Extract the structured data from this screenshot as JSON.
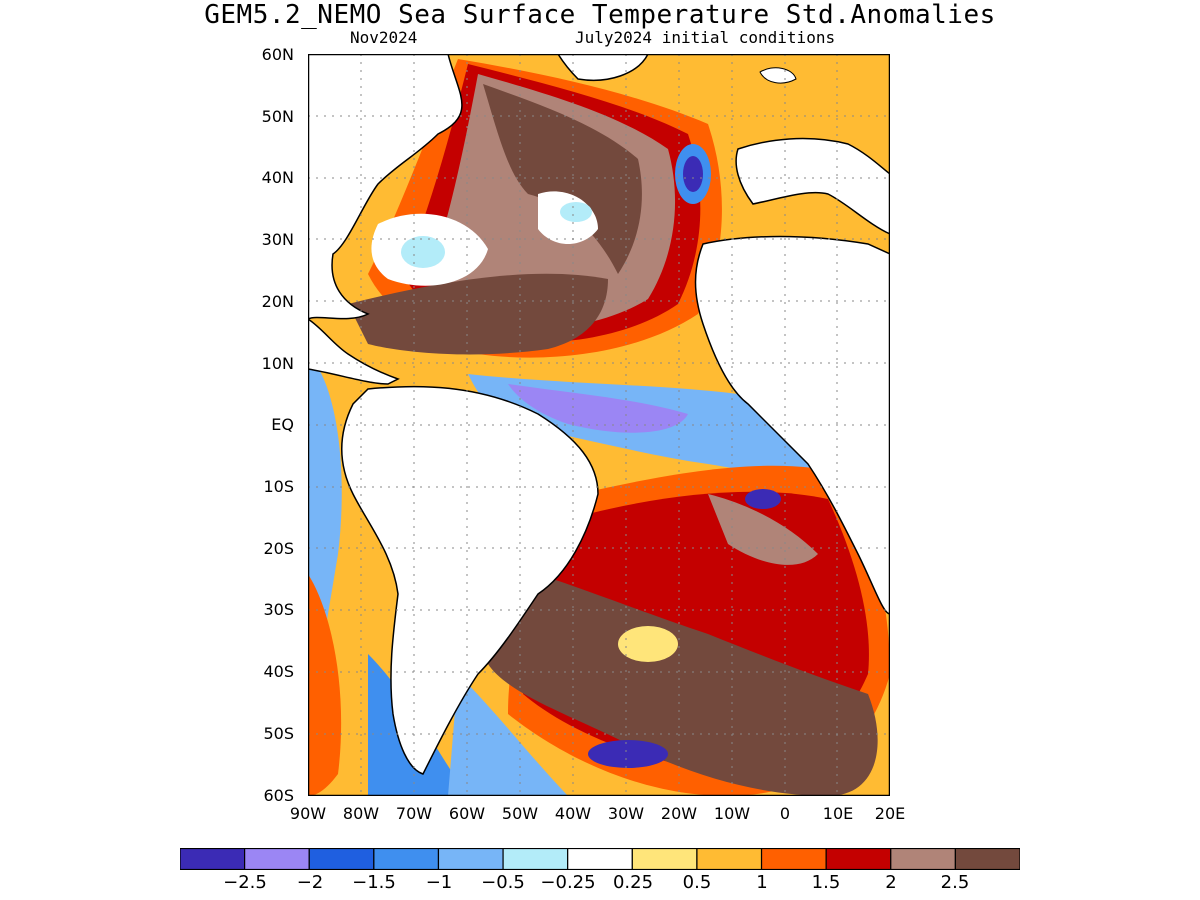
{
  "title": "GEM5.2_NEMO Sea Surface Temperature Std.Anomalies",
  "subtitle_left": "Nov2024",
  "subtitle_right": "July2024 initial conditions",
  "lat_labels": [
    "60N",
    "50N",
    "40N",
    "30N",
    "20N",
    "10N",
    "EQ",
    "10S",
    "20S",
    "30S",
    "40S",
    "50S",
    "60S"
  ],
  "lon_labels": [
    "90W",
    "80W",
    "70W",
    "60W",
    "50W",
    "40W",
    "30W",
    "20W",
    "10W",
    "0",
    "10E",
    "20E"
  ],
  "colorbar": {
    "colors": [
      "#3b2bb5",
      "#9b86f4",
      "#1f5fe0",
      "#3f8fef",
      "#77b5f7",
      "#b3ecf9",
      "#ffffff",
      "#ffe57a",
      "#ffbb33",
      "#ff6000",
      "#c40000",
      "#b08478",
      "#73493d"
    ],
    "labels": [
      "−2.5",
      "−2",
      "−1.5",
      "−1",
      "−0.5",
      "−0.25",
      "0.25",
      "0.5",
      "1",
      "1.5",
      "2",
      "2.5"
    ]
  }
}
